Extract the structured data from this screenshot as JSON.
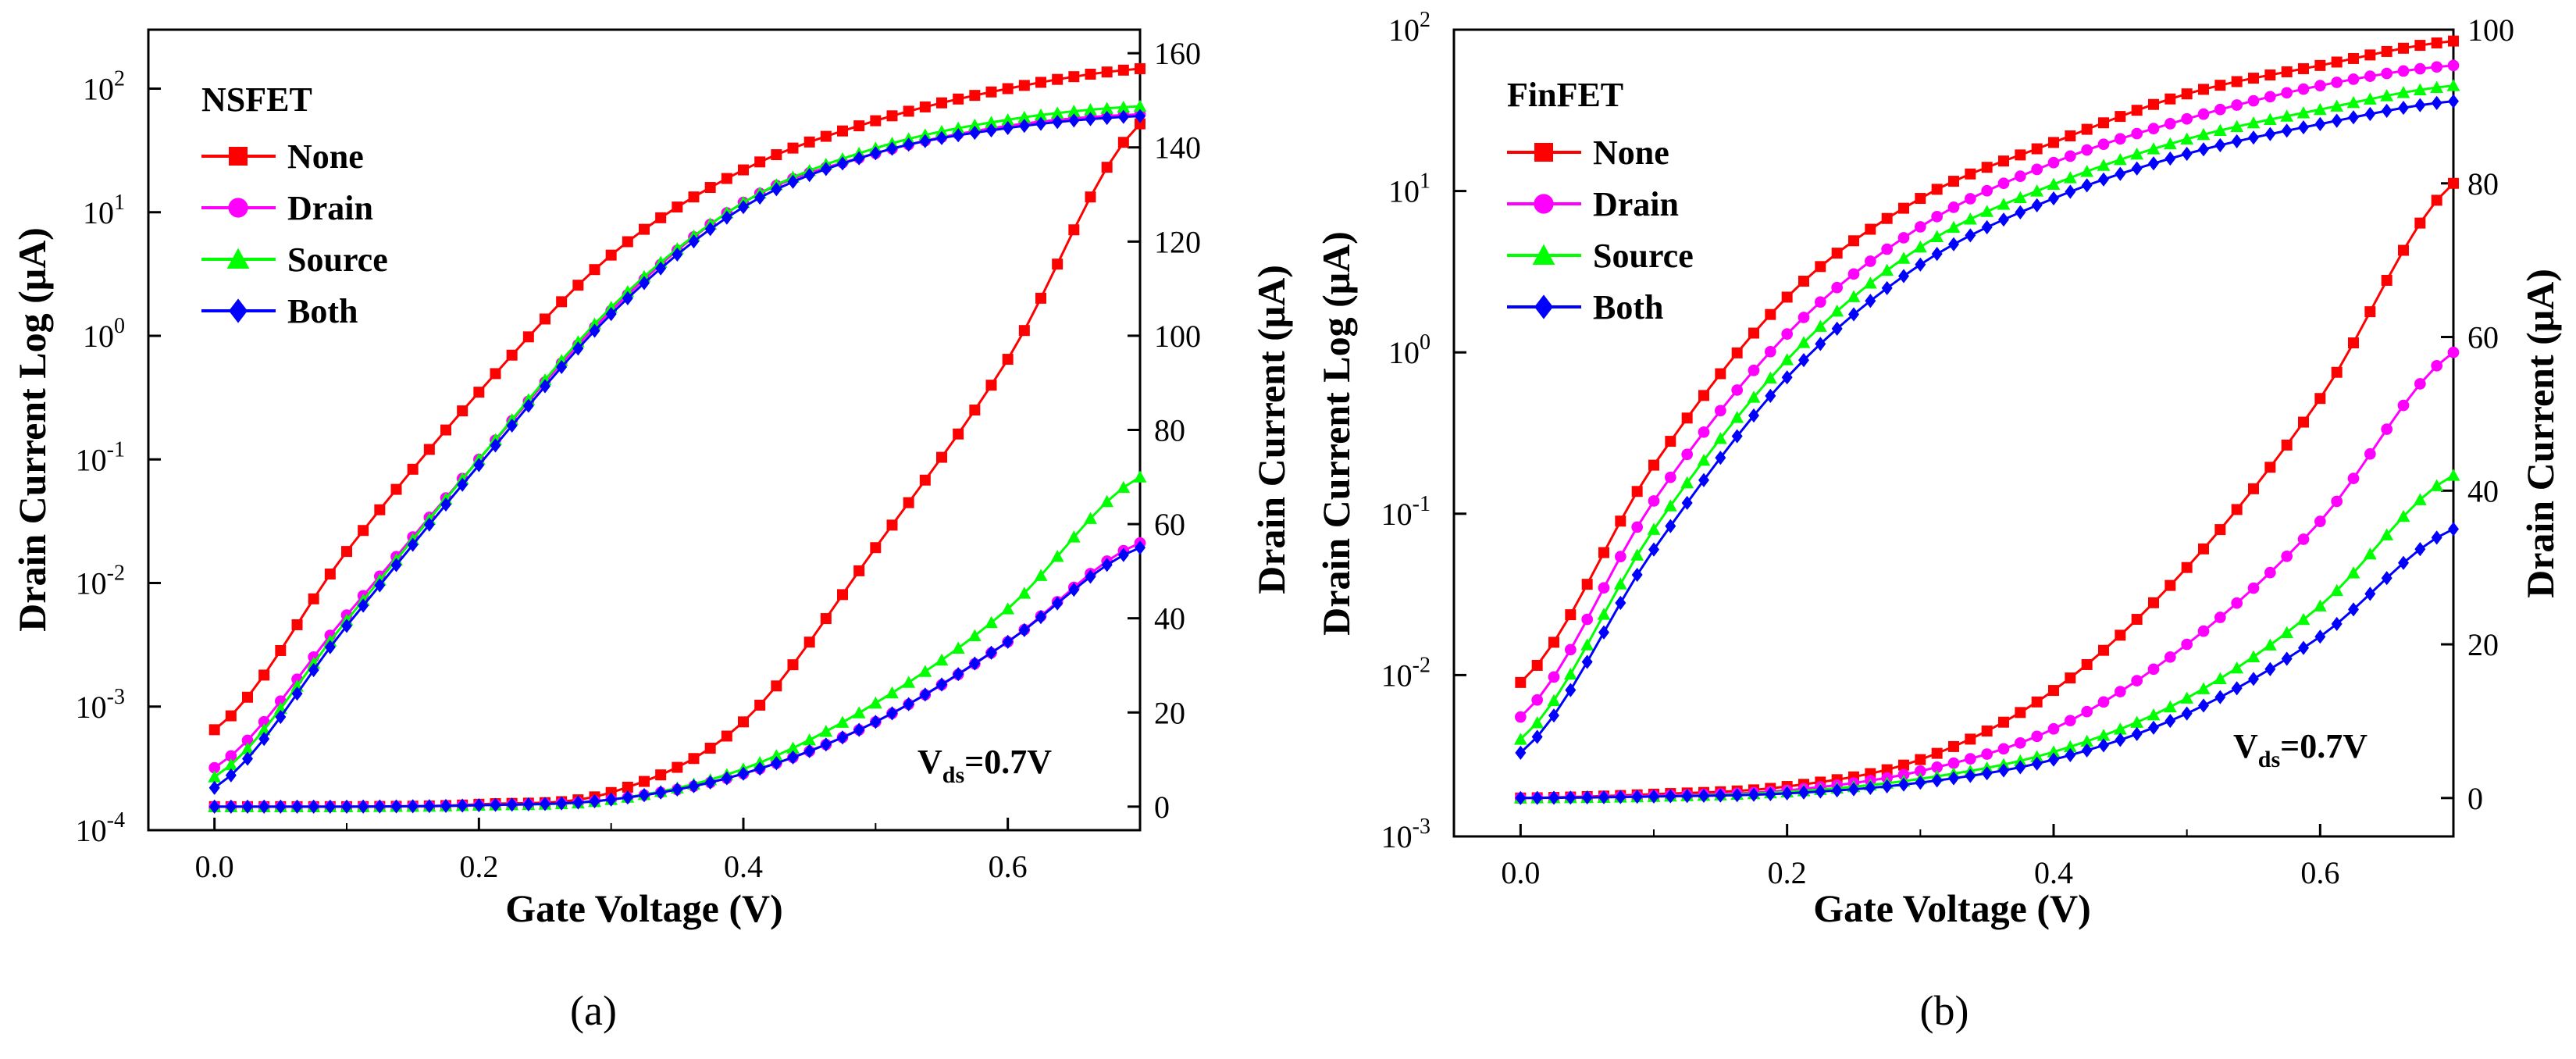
{
  "captions": [
    "(a)",
    "(b)"
  ],
  "chart_data": [
    {
      "type": "line",
      "title": "NSFET",
      "xlabel": "Gate Voltage (V)",
      "ylabel": "Drain Current Log (μA)",
      "ylabel_right": "Drain Current (μA)",
      "xlim": [
        -0.05,
        0.7
      ],
      "ylim_log": [
        0.0001,
        300
      ],
      "ylim_linear": [
        -5,
        165
      ],
      "yscale_left": "log",
      "xticks": [
        "0.0",
        "0.2",
        "0.4",
        "0.6"
      ],
      "yticks_left": [
        {
          "base": "10",
          "exp": "2"
        },
        {
          "base": "10",
          "exp": "1"
        },
        {
          "base": "10",
          "exp": "0"
        },
        {
          "base": "10",
          "exp": "-1"
        },
        {
          "base": "10",
          "exp": "-2"
        },
        {
          "base": "10",
          "exp": "-3"
        },
        {
          "base": "10",
          "exp": "-4"
        }
      ],
      "yticks_right": [
        "0",
        "20",
        "40",
        "60",
        "80",
        "100",
        "120",
        "140",
        "160"
      ],
      "annotation": {
        "main": "V",
        "sub": "ds",
        "rest": "=0.7V"
      },
      "legend_position": "top-left",
      "x": [
        0.0,
        0.1,
        0.2,
        0.3,
        0.4,
        0.5,
        0.6,
        0.7
      ],
      "series": [
        {
          "name": "None",
          "color": "#ff0000",
          "marker": "square",
          "log_values": [
            0.00065,
            0.018,
            0.35,
            4.5,
            22,
            55,
            100,
            145
          ],
          "linear_values": [
            0,
            0,
            0.5,
            3,
            18,
            55,
            95,
            145
          ]
        },
        {
          "name": "Drain",
          "color": "#ff00ff",
          "marker": "circle",
          "log_values": [
            0.00032,
            0.0055,
            0.1,
            1.6,
            12,
            30,
            50,
            62
          ],
          "linear_values": [
            0,
            0,
            0.3,
            1.5,
            7,
            18,
            35,
            56
          ]
        },
        {
          "name": "Source",
          "color": "#00ff00",
          "marker": "triangle",
          "log_values": [
            0.00027,
            0.005,
            0.1,
            1.7,
            12,
            33,
            56,
            72
          ],
          "linear_values": [
            0,
            0,
            0.3,
            1.5,
            8,
            22,
            42,
            70
          ]
        },
        {
          "name": "Both",
          "color": "#0000ff",
          "marker": "diamond",
          "log_values": [
            0.00022,
            0.0045,
            0.09,
            1.5,
            11,
            30,
            48,
            60
          ],
          "linear_values": [
            0,
            0,
            0.3,
            1.5,
            7,
            18,
            35,
            55
          ]
        }
      ]
    },
    {
      "type": "line",
      "title": "FinFET",
      "xlabel": "Gate Voltage (V)",
      "ylabel": "Drain Current Log (μA)",
      "ylabel_right": "Drain Current (μA)",
      "xlim": [
        -0.05,
        0.7
      ],
      "ylim_log": [
        0.001,
        100
      ],
      "ylim_linear": [
        -5,
        100
      ],
      "yscale_left": "log",
      "xticks": [
        "0.0",
        "0.2",
        "0.4",
        "0.6"
      ],
      "yticks_left": [
        {
          "base": "10",
          "exp": "2"
        },
        {
          "base": "10",
          "exp": "1"
        },
        {
          "base": "10",
          "exp": "0"
        },
        {
          "base": "10",
          "exp": "-1"
        },
        {
          "base": "10",
          "exp": "-2"
        },
        {
          "base": "10",
          "exp": "-3"
        }
      ],
      "yticks_right": [
        "0",
        "20",
        "40",
        "60",
        "80",
        "100"
      ],
      "annotation": {
        "main": "V",
        "sub": "ds",
        "rest": "=0.7V"
      },
      "legend_position": "top-left",
      "x": [
        0.0,
        0.1,
        0.2,
        0.3,
        0.4,
        0.5,
        0.6,
        0.7
      ],
      "series": [
        {
          "name": "None",
          "color": "#ff0000",
          "marker": "square",
          "log_values": [
            0.009,
            0.2,
            2.2,
            9,
            20,
            40,
            60,
            85
          ],
          "linear_values": [
            0,
            0.5,
            1.5,
            5,
            14,
            30,
            52,
            80
          ]
        },
        {
          "name": "Drain",
          "color": "#ff00ff",
          "marker": "circle",
          "log_values": [
            0.0055,
            0.12,
            1.3,
            6,
            15,
            28,
            45,
            60
          ],
          "linear_values": [
            0,
            0.3,
            1,
            3.5,
            9,
            20,
            36,
            58
          ]
        },
        {
          "name": "Source",
          "color": "#00ff00",
          "marker": "triangle",
          "log_values": [
            0.004,
            0.08,
            0.9,
            4.5,
            11,
            21,
            32,
            45
          ],
          "linear_values": [
            0,
            0.2,
            0.8,
            2.5,
            6,
            13,
            25,
            42
          ]
        },
        {
          "name": "Both",
          "color": "#0000ff",
          "marker": "diamond",
          "log_values": [
            0.0033,
            0.06,
            0.7,
            3.5,
            9,
            17,
            26,
            36
          ],
          "linear_values": [
            0,
            0.2,
            0.6,
            2,
            5,
            11,
            21,
            35
          ]
        }
      ]
    }
  ]
}
